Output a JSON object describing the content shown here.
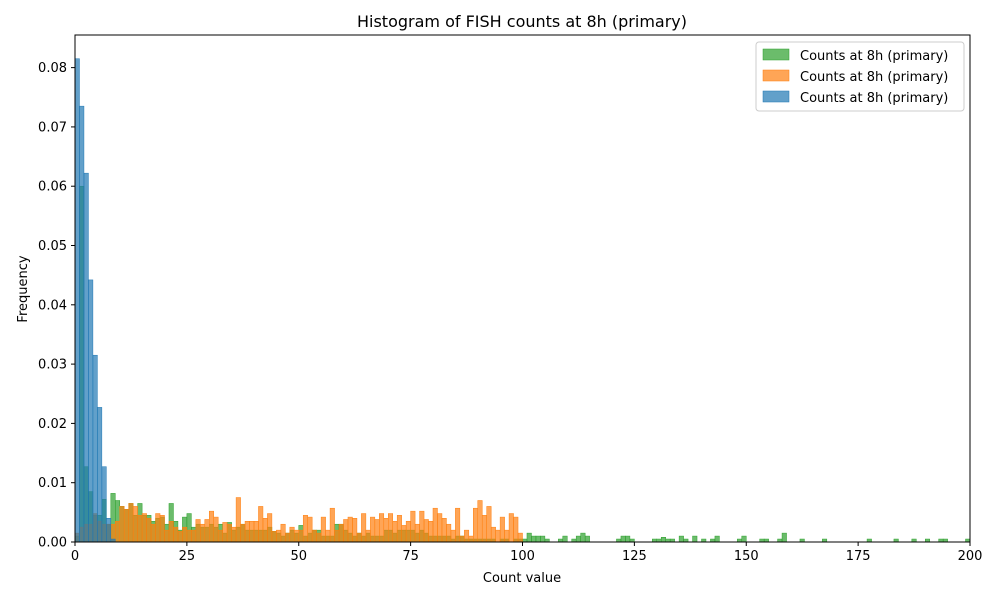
{
  "chart_data": {
    "type": "bar",
    "title": "Histogram of FISH counts at 8h (primary)",
    "xlabel": "Count value",
    "ylabel": "Frequency",
    "xlim": [
      0,
      200
    ],
    "ylim": [
      0,
      0.0855
    ],
    "xticks": [
      "0",
      "25",
      "50",
      "75",
      "100",
      "125",
      "150",
      "175",
      "200"
    ],
    "yticks": [
      "0.00",
      "0.01",
      "0.02",
      "0.03",
      "0.04",
      "0.05",
      "0.06",
      "0.07",
      "0.08"
    ],
    "legend": {
      "placement": "top-right",
      "entries": [
        "Counts at 8h (primary)",
        "Counts at 8h (primary)",
        "Counts at 8h (primary)"
      ]
    },
    "grid": false,
    "series": [
      {
        "name": "Counts at 8h (primary)",
        "color": "#2ca02c",
        "bin_width": 1,
        "bins": [
          [
            0,
            0.001
          ],
          [
            1,
            0.06
          ],
          [
            2,
            0.0127
          ],
          [
            3,
            0.0085
          ],
          [
            4,
            0.0045
          ],
          [
            5,
            0.0045
          ],
          [
            6,
            0.0072
          ],
          [
            7,
            0.003
          ],
          [
            8,
            0.0082
          ],
          [
            9,
            0.007
          ],
          [
            10,
            0.006
          ],
          [
            11,
            0.0055
          ],
          [
            12,
            0.0065
          ],
          [
            13,
            0.0045
          ],
          [
            14,
            0.0065
          ],
          [
            15,
            0.0045
          ],
          [
            16,
            0.0045
          ],
          [
            17,
            0.0035
          ],
          [
            18,
            0.004
          ],
          [
            19,
            0.0042
          ],
          [
            20,
            0.003
          ],
          [
            21,
            0.0065
          ],
          [
            22,
            0.0035
          ],
          [
            23,
            0.002
          ],
          [
            24,
            0.0042
          ],
          [
            25,
            0.0048
          ],
          [
            26,
            0.0025
          ],
          [
            27,
            0.003
          ],
          [
            28,
            0.0025
          ],
          [
            29,
            0.0025
          ],
          [
            30,
            0.003
          ],
          [
            31,
            0.0025
          ],
          [
            32,
            0.003
          ],
          [
            33,
            0.0015
          ],
          [
            34,
            0.0033
          ],
          [
            35,
            0.002
          ],
          [
            36,
            0.0025
          ],
          [
            37,
            0.003
          ],
          [
            38,
            0.002
          ],
          [
            39,
            0.002
          ],
          [
            40,
            0.002
          ],
          [
            41,
            0.002
          ],
          [
            42,
            0.002
          ],
          [
            43,
            0.0025
          ],
          [
            44,
            0.0018
          ],
          [
            45,
            0.0015
          ],
          [
            46,
            0.001
          ],
          [
            47,
            0.0015
          ],
          [
            48,
            0.002
          ],
          [
            49,
            0.0015
          ],
          [
            50,
            0.0028
          ],
          [
            51,
            0.001
          ],
          [
            52,
            0.0015
          ],
          [
            53,
            0.002
          ],
          [
            54,
            0.002
          ],
          [
            55,
            0.001
          ],
          [
            56,
            0.001
          ],
          [
            57,
            0.001
          ],
          [
            58,
            0.003
          ],
          [
            59,
            0.003
          ],
          [
            60,
            0.002
          ],
          [
            61,
            0.0015
          ],
          [
            62,
            0.001
          ],
          [
            63,
            0.0015
          ],
          [
            64,
            0.001
          ],
          [
            65,
            0.0015
          ],
          [
            66,
            0.001
          ],
          [
            67,
            0.001
          ],
          [
            68,
            0.001
          ],
          [
            69,
            0.002
          ],
          [
            70,
            0.002
          ],
          [
            71,
            0.0015
          ],
          [
            72,
            0.002
          ],
          [
            73,
            0.002
          ],
          [
            74,
            0.002
          ],
          [
            75,
            0.002
          ],
          [
            76,
            0.0015
          ],
          [
            77,
            0.002
          ],
          [
            78,
            0.0015
          ],
          [
            79,
            0.001
          ],
          [
            80,
            0.001
          ],
          [
            81,
            0.001
          ],
          [
            82,
            0.001
          ],
          [
            83,
            0.001
          ],
          [
            84,
            0.0005
          ],
          [
            85,
            0.001
          ],
          [
            86,
            0.001
          ],
          [
            87,
            0.0005
          ],
          [
            88,
            0.0005
          ],
          [
            89,
            0.0005
          ],
          [
            90,
            0.0005
          ],
          [
            91,
            0.0005
          ],
          [
            92,
            0.0005
          ],
          [
            93,
            0.0005
          ],
          [
            95,
            0.0005
          ],
          [
            96,
            0.0005
          ],
          [
            98,
            0.0005
          ],
          [
            99,
            0.0005
          ],
          [
            100,
            0.0005
          ],
          [
            101,
            0.0015
          ],
          [
            102,
            0.001
          ],
          [
            103,
            0.001
          ],
          [
            104,
            0.001
          ],
          [
            105,
            0.0005
          ],
          [
            108,
            0.0005
          ],
          [
            109,
            0.001
          ],
          [
            111,
            0.0005
          ],
          [
            112,
            0.001
          ],
          [
            113,
            0.0015
          ],
          [
            114,
            0.001
          ],
          [
            121,
            0.0005
          ],
          [
            122,
            0.001
          ],
          [
            123,
            0.001
          ],
          [
            124,
            0.0005
          ],
          [
            129,
            0.0005
          ],
          [
            130,
            0.0005
          ],
          [
            131,
            0.0008
          ],
          [
            132,
            0.0005
          ],
          [
            133,
            0.0005
          ],
          [
            135,
            0.001
          ],
          [
            136,
            0.0005
          ],
          [
            138,
            0.001
          ],
          [
            140,
            0.0005
          ],
          [
            142,
            0.0005
          ],
          [
            143,
            0.001
          ],
          [
            148,
            0.0005
          ],
          [
            149,
            0.001
          ],
          [
            153,
            0.0005
          ],
          [
            154,
            0.0005
          ],
          [
            157,
            0.0005
          ],
          [
            158,
            0.0015
          ],
          [
            162,
            0.0005
          ],
          [
            167,
            0.0005
          ],
          [
            177,
            0.0005
          ],
          [
            183,
            0.0005
          ],
          [
            187,
            0.0005
          ],
          [
            190,
            0.0005
          ],
          [
            193,
            0.0005
          ],
          [
            194,
            0.0005
          ],
          [
            199,
            0.0005
          ]
        ]
      },
      {
        "name": "Counts at 8h (primary)",
        "color": "#ff7f0e",
        "bin_width": 1,
        "bins": [
          [
            0,
            0.0015
          ],
          [
            1,
            0.0025
          ],
          [
            2,
            0.003
          ],
          [
            3,
            0.003
          ],
          [
            4,
            0.0048
          ],
          [
            5,
            0.0035
          ],
          [
            6,
            0.003
          ],
          [
            7,
            0.003
          ],
          [
            8,
            0.003
          ],
          [
            9,
            0.0035
          ],
          [
            10,
            0.006
          ],
          [
            11,
            0.0055
          ],
          [
            12,
            0.0065
          ],
          [
            13,
            0.006
          ],
          [
            14,
            0.0045
          ],
          [
            15,
            0.0048
          ],
          [
            16,
            0.004
          ],
          [
            17,
            0.003
          ],
          [
            18,
            0.0048
          ],
          [
            19,
            0.0045
          ],
          [
            20,
            0.002
          ],
          [
            21,
            0.0035
          ],
          [
            22,
            0.0025
          ],
          [
            23,
            0.0018
          ],
          [
            24,
            0.0025
          ],
          [
            25,
            0.002
          ],
          [
            26,
            0.002
          ],
          [
            27,
            0.0038
          ],
          [
            28,
            0.003
          ],
          [
            29,
            0.0038
          ],
          [
            30,
            0.0052
          ],
          [
            31,
            0.0042
          ],
          [
            32,
            0.002
          ],
          [
            33,
            0.0033
          ],
          [
            34,
            0.003
          ],
          [
            35,
            0.0025
          ],
          [
            36,
            0.0075
          ],
          [
            37,
            0.003
          ],
          [
            38,
            0.0035
          ],
          [
            39,
            0.0035
          ],
          [
            40,
            0.0035
          ],
          [
            41,
            0.006
          ],
          [
            42,
            0.004
          ],
          [
            43,
            0.0048
          ],
          [
            44,
            0.0018
          ],
          [
            45,
            0.002
          ],
          [
            46,
            0.003
          ],
          [
            47,
            0.0015
          ],
          [
            48,
            0.0025
          ],
          [
            49,
            0.002
          ],
          [
            50,
            0.002
          ],
          [
            51,
            0.0045
          ],
          [
            52,
            0.0042
          ],
          [
            53,
            0.002
          ],
          [
            54,
            0.0015
          ],
          [
            55,
            0.0042
          ],
          [
            56,
            0.002
          ],
          [
            57,
            0.0057
          ],
          [
            58,
            0.002
          ],
          [
            59,
            0.003
          ],
          [
            60,
            0.0038
          ],
          [
            61,
            0.0042
          ],
          [
            62,
            0.004
          ],
          [
            63,
            0.0015
          ],
          [
            64,
            0.0048
          ],
          [
            65,
            0.002
          ],
          [
            66,
            0.0042
          ],
          [
            67,
            0.0038
          ],
          [
            68,
            0.0048
          ],
          [
            69,
            0.004
          ],
          [
            70,
            0.0048
          ],
          [
            71,
            0.0035
          ],
          [
            72,
            0.0045
          ],
          [
            73,
            0.0028
          ],
          [
            74,
            0.0035
          ],
          [
            75,
            0.0052
          ],
          [
            76,
            0.003
          ],
          [
            77,
            0.0052
          ],
          [
            78,
            0.0038
          ],
          [
            79,
            0.0035
          ],
          [
            80,
            0.0057
          ],
          [
            81,
            0.0048
          ],
          [
            82,
            0.004
          ],
          [
            83,
            0.003
          ],
          [
            84,
            0.002
          ],
          [
            85,
            0.0057
          ],
          [
            86,
            0.001
          ],
          [
            87,
            0.002
          ],
          [
            88,
            0.001
          ],
          [
            89,
            0.0057
          ],
          [
            90,
            0.007
          ],
          [
            91,
            0.0045
          ],
          [
            92,
            0.006
          ],
          [
            93,
            0.0025
          ],
          [
            94,
            0.002
          ],
          [
            95,
            0.0042
          ],
          [
            96,
            0.002
          ],
          [
            97,
            0.0048
          ],
          [
            98,
            0.0042
          ],
          [
            99,
            0.0015
          ]
        ]
      },
      {
        "name": "Counts at 8h (primary)",
        "color": "#1f77b4",
        "bin_width": 1,
        "bins": [
          [
            0,
            0.0815
          ],
          [
            1,
            0.0735
          ],
          [
            2,
            0.0622
          ],
          [
            3,
            0.0442
          ],
          [
            4,
            0.0315
          ],
          [
            5,
            0.0227
          ],
          [
            6,
            0.0127
          ],
          [
            7,
            0.004
          ],
          [
            8,
            0.0005
          ]
        ]
      }
    ]
  }
}
